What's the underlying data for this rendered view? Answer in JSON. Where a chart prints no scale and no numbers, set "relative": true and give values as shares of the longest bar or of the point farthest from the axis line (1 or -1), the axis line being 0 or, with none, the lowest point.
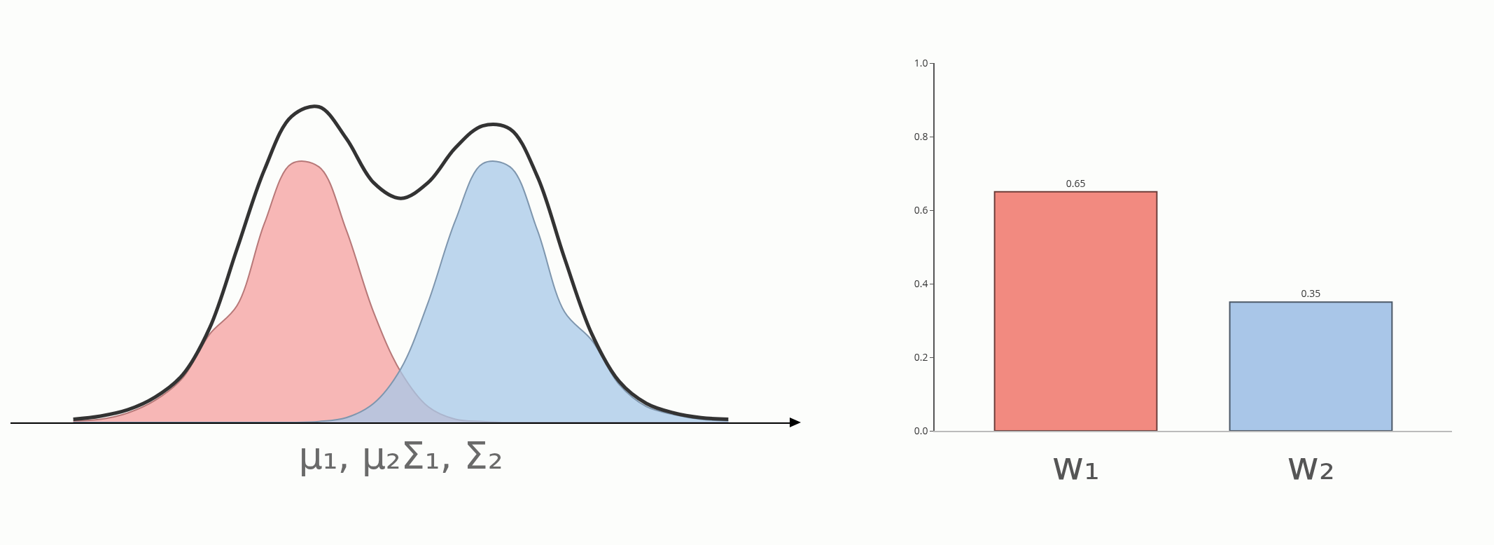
{
  "chart_data": [
    {
      "type": "area",
      "relative": true,
      "xlabel": "μ₁, μ₂Σ₁, Σ₂",
      "categories": [
        null,
        null,
        null,
        null,
        null,
        null,
        null,
        null,
        null,
        null,
        null,
        null,
        null,
        null,
        null,
        null,
        null,
        null,
        null,
        null,
        null,
        null,
        null,
        null,
        null
      ],
      "grid": false,
      "series": [
        {
          "type": "area",
          "color": "#f4a0a0",
          "values": [
            0.005,
            0.01,
            0.03,
            0.07,
            0.14,
            0.28,
            0.37,
            0.63,
            0.82,
            0.81,
            0.61,
            0.35,
            0.16,
            0.05,
            0.01,
            0.003,
            0,
            0,
            0,
            0,
            0,
            0,
            0,
            0,
            0
          ]
        },
        {
          "type": "area",
          "color": "#a8c8e8",
          "values": [
            0,
            0,
            0,
            0,
            0,
            0,
            0,
            0,
            0,
            0.003,
            0.015,
            0.06,
            0.17,
            0.38,
            0.64,
            0.82,
            0.81,
            0.61,
            0.35,
            0.26,
            0.12,
            0.05,
            0.025,
            0.01,
            0.005
          ]
        },
        {
          "type": "line",
          "color": "#333333",
          "values": [
            0.01,
            0.02,
            0.04,
            0.08,
            0.15,
            0.3,
            0.55,
            0.8,
            0.97,
            1,
            0.9,
            0.76,
            0.71,
            0.76,
            0.87,
            0.94,
            0.93,
            0.78,
            0.52,
            0.28,
            0.13,
            0.06,
            0.03,
            0.015,
            0.01
          ]
        }
      ]
    },
    {
      "type": "bar",
      "categories": [
        "w₁",
        "w₂"
      ],
      "values": [
        0.65,
        0.35
      ],
      "colors": [
        "#f28a80",
        "#a9c6e8"
      ],
      "data_labels": true,
      "ylim": [
        0,
        1
      ],
      "yticks": [
        {
          "value": 0,
          "label": "0.0"
        },
        {
          "value": 0.2,
          "label": "0.2"
        },
        {
          "value": 0.4,
          "label": "0.4"
        },
        {
          "value": 0.6,
          "label": "0.6"
        },
        {
          "value": 0.8,
          "label": "0.8"
        },
        {
          "value": 1,
          "label": "1.0"
        }
      ],
      "grid": false
    }
  ]
}
